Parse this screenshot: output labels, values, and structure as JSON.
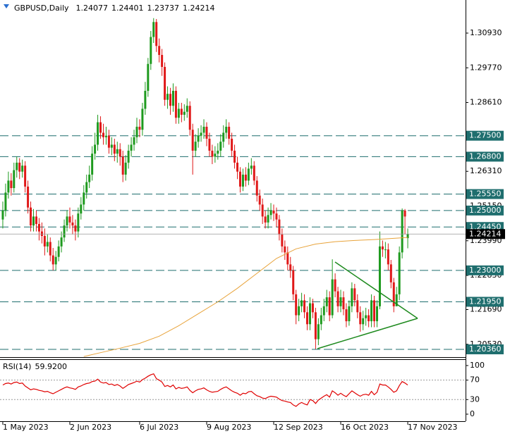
{
  "chart_data": {
    "type": "candlestick",
    "title": "GBPUSD,Daily",
    "up_color": "#1e9a1e",
    "down_color": "#e01818",
    "ohlc": [
      [
        1.247,
        1.253,
        1.244,
        1.25
      ],
      [
        1.25,
        1.259,
        1.248,
        1.256
      ],
      [
        1.256,
        1.263,
        1.254,
        1.26
      ],
      [
        1.26,
        1.2625,
        1.255,
        1.2575
      ],
      [
        1.2575,
        1.266,
        1.256,
        1.2635
      ],
      [
        1.2635,
        1.268,
        1.261,
        1.266
      ],
      [
        1.266,
        1.2675,
        1.2605,
        1.263
      ],
      [
        1.263,
        1.267,
        1.261,
        1.265
      ],
      [
        1.265,
        1.2665,
        1.256,
        1.258
      ],
      [
        1.258,
        1.26,
        1.249,
        1.251
      ],
      [
        1.251,
        1.253,
        1.243,
        1.245
      ],
      [
        1.245,
        1.2505,
        1.243,
        1.248
      ],
      [
        1.248,
        1.25,
        1.243,
        1.2455
      ],
      [
        1.2455,
        1.2475,
        1.24,
        1.243
      ],
      [
        1.243,
        1.246,
        1.239,
        1.2415
      ],
      [
        1.2415,
        1.244,
        1.235,
        1.238
      ],
      [
        1.238,
        1.242,
        1.236,
        1.2395
      ],
      [
        1.2395,
        1.241,
        1.233,
        1.235
      ],
      [
        1.235,
        1.2375,
        1.23,
        1.232
      ],
      [
        1.232,
        1.2365,
        1.23,
        1.2345
      ],
      [
        1.2345,
        1.24,
        1.233,
        1.238
      ],
      [
        1.238,
        1.243,
        1.236,
        1.241
      ],
      [
        1.241,
        1.247,
        1.2395,
        1.245
      ],
      [
        1.245,
        1.25,
        1.243,
        1.248
      ],
      [
        1.248,
        1.251,
        1.244,
        1.246
      ],
      [
        1.246,
        1.2485,
        1.242,
        1.245
      ],
      [
        1.245,
        1.247,
        1.24,
        1.243
      ],
      [
        1.243,
        1.251,
        1.241,
        1.249
      ],
      [
        1.249,
        1.2545,
        1.247,
        1.252
      ],
      [
        1.252,
        1.2585,
        1.25,
        1.256
      ],
      [
        1.256,
        1.262,
        1.254,
        1.2595
      ],
      [
        1.2595,
        1.265,
        1.2575,
        1.262
      ],
      [
        1.262,
        1.2715,
        1.26,
        1.269
      ],
      [
        1.269,
        1.276,
        1.267,
        1.272
      ],
      [
        1.272,
        1.282,
        1.27,
        1.2795
      ],
      [
        1.2795,
        1.2815,
        1.274,
        1.276
      ],
      [
        1.276,
        1.279,
        1.272,
        1.2745
      ],
      [
        1.2745,
        1.278,
        1.272,
        1.275
      ],
      [
        1.275,
        1.277,
        1.269,
        1.271
      ],
      [
        1.271,
        1.2745,
        1.2685,
        1.272
      ],
      [
        1.272,
        1.274,
        1.2665,
        1.269
      ],
      [
        1.269,
        1.273,
        1.266,
        1.2705
      ],
      [
        1.2705,
        1.2725,
        1.265,
        1.268
      ],
      [
        1.268,
        1.27,
        1.2595,
        1.262
      ],
      [
        1.262,
        1.2685,
        1.26,
        1.266
      ],
      [
        1.266,
        1.272,
        1.264,
        1.27
      ],
      [
        1.27,
        1.2745,
        1.268,
        1.272
      ],
      [
        1.272,
        1.277,
        1.27,
        1.2745
      ],
      [
        1.2745,
        1.281,
        1.2725,
        1.278
      ],
      [
        1.278,
        1.2805,
        1.2745,
        1.277
      ],
      [
        1.277,
        1.286,
        1.275,
        1.284
      ],
      [
        1.284,
        1.293,
        1.282,
        1.29
      ],
      [
        1.29,
        1.301,
        1.288,
        1.299
      ],
      [
        1.299,
        1.31,
        1.297,
        1.308
      ],
      [
        1.308,
        1.3143,
        1.306,
        1.313
      ],
      [
        1.313,
        1.314,
        1.303,
        1.305
      ],
      [
        1.305,
        1.3075,
        1.2995,
        1.302
      ],
      [
        1.302,
        1.304,
        1.295,
        1.298
      ],
      [
        1.298,
        1.2995,
        1.285,
        1.287
      ],
      [
        1.287,
        1.2915,
        1.284,
        1.289
      ],
      [
        1.289,
        1.291,
        1.282,
        1.285
      ],
      [
        1.285,
        1.2925,
        1.283,
        1.29
      ],
      [
        1.29,
        1.2915,
        1.279,
        1.281
      ],
      [
        1.281,
        1.286,
        1.279,
        1.284
      ],
      [
        1.284,
        1.286,
        1.2795,
        1.282
      ],
      [
        1.282,
        1.2855,
        1.28,
        1.283
      ],
      [
        1.283,
        1.2875,
        1.281,
        1.285
      ],
      [
        1.285,
        1.2865,
        1.275,
        1.277
      ],
      [
        1.277,
        1.279,
        1.262,
        1.27
      ],
      [
        1.27,
        1.2755,
        1.268,
        1.273
      ],
      [
        1.273,
        1.2775,
        1.271,
        1.275
      ],
      [
        1.275,
        1.2785,
        1.273,
        1.276
      ],
      [
        1.276,
        1.2805,
        1.274,
        1.278
      ],
      [
        1.278,
        1.2795,
        1.2715,
        1.274
      ],
      [
        1.274,
        1.276,
        1.268,
        1.27
      ],
      [
        1.27,
        1.272,
        1.2655,
        1.268
      ],
      [
        1.268,
        1.2715,
        1.266,
        1.269
      ],
      [
        1.269,
        1.2725,
        1.267,
        1.27
      ],
      [
        1.27,
        1.2755,
        1.268,
        1.273
      ],
      [
        1.273,
        1.2785,
        1.271,
        1.276
      ],
      [
        1.276,
        1.2805,
        1.274,
        1.278
      ],
      [
        1.278,
        1.2795,
        1.272,
        1.274
      ],
      [
        1.274,
        1.276,
        1.268,
        1.27
      ],
      [
        1.27,
        1.272,
        1.264,
        1.266
      ],
      [
        1.266,
        1.268,
        1.2605,
        1.263
      ],
      [
        1.263,
        1.2645,
        1.256,
        1.258
      ],
      [
        1.258,
        1.264,
        1.2565,
        1.262
      ],
      [
        1.262,
        1.2645,
        1.258,
        1.26
      ],
      [
        1.26,
        1.266,
        1.2585,
        1.264
      ],
      [
        1.264,
        1.2675,
        1.262,
        1.265
      ],
      [
        1.265,
        1.2665,
        1.2585,
        1.26
      ],
      [
        1.26,
        1.2615,
        1.253,
        1.255
      ],
      [
        1.255,
        1.257,
        1.25,
        1.252
      ],
      [
        1.252,
        1.254,
        1.2455,
        1.248
      ],
      [
        1.248,
        1.25,
        1.244,
        1.246
      ],
      [
        1.246,
        1.251,
        1.244,
        1.2485
      ],
      [
        1.2485,
        1.2525,
        1.247,
        1.25
      ],
      [
        1.25,
        1.252,
        1.2465,
        1.249
      ],
      [
        1.249,
        1.251,
        1.2445,
        1.247
      ],
      [
        1.247,
        1.2485,
        1.24,
        1.242
      ],
      [
        1.242,
        1.244,
        1.236,
        1.238
      ],
      [
        1.238,
        1.24,
        1.2335,
        1.236
      ],
      [
        1.236,
        1.238,
        1.23,
        1.232
      ],
      [
        1.232,
        1.2345,
        1.2275,
        1.23
      ],
      [
        1.23,
        1.2315,
        1.22,
        1.222
      ],
      [
        1.222,
        1.2235,
        1.212,
        1.215
      ],
      [
        1.215,
        1.2205,
        1.213,
        1.218
      ],
      [
        1.218,
        1.2225,
        1.216,
        1.22
      ],
      [
        1.22,
        1.222,
        1.214,
        1.216
      ],
      [
        1.216,
        1.218,
        1.21,
        1.212
      ],
      [
        1.212,
        1.221,
        1.21,
        1.219
      ],
      [
        1.219,
        1.2205,
        1.214,
        1.216
      ],
      [
        1.216,
        1.2175,
        1.2037,
        1.207
      ],
      [
        1.207,
        1.214,
        1.205,
        1.212
      ],
      [
        1.212,
        1.2175,
        1.21,
        1.215
      ],
      [
        1.215,
        1.2205,
        1.213,
        1.218
      ],
      [
        1.218,
        1.2235,
        1.216,
        1.221
      ],
      [
        1.221,
        1.223,
        1.213,
        1.215
      ],
      [
        1.215,
        1.2337,
        1.214,
        1.227
      ],
      [
        1.227,
        1.229,
        1.221,
        1.223
      ],
      [
        1.223,
        1.2245,
        1.216,
        1.218
      ],
      [
        1.218,
        1.2235,
        1.216,
        1.221
      ],
      [
        1.221,
        1.223,
        1.215,
        1.217
      ],
      [
        1.217,
        1.219,
        1.211,
        1.213
      ],
      [
        1.213,
        1.22,
        1.2115,
        1.218
      ],
      [
        1.218,
        1.226,
        1.216,
        1.224
      ],
      [
        1.224,
        1.2255,
        1.218,
        1.22
      ],
      [
        1.22,
        1.222,
        1.214,
        1.216
      ],
      [
        1.216,
        1.218,
        1.2095,
        1.212
      ],
      [
        1.212,
        1.2165,
        1.21,
        1.214
      ],
      [
        1.214,
        1.2175,
        1.2115,
        1.215
      ],
      [
        1.215,
        1.217,
        1.211,
        1.213
      ],
      [
        1.213,
        1.222,
        1.211,
        1.22
      ],
      [
        1.22,
        1.2215,
        1.211,
        1.213
      ],
      [
        1.213,
        1.22,
        1.211,
        1.218
      ],
      [
        1.218,
        1.243,
        1.217,
        1.238
      ],
      [
        1.238,
        1.24,
        1.2345,
        1.237
      ],
      [
        1.237,
        1.2395,
        1.234,
        1.237
      ],
      [
        1.237,
        1.239,
        1.23,
        1.232
      ],
      [
        1.232,
        1.2335,
        1.224,
        1.226
      ],
      [
        1.226,
        1.2275,
        1.216,
        1.218
      ],
      [
        1.218,
        1.2245,
        1.219,
        1.222
      ],
      [
        1.222,
        1.238,
        1.22,
        1.236
      ],
      [
        1.236,
        1.2507,
        1.234,
        1.25
      ],
      [
        1.25,
        1.2505,
        1.242,
        1.248
      ],
      [
        1.24077,
        1.24401,
        1.23737,
        1.24214
      ]
    ],
    "ma_color": "#e8a33a",
    "ma_x": [
      29,
      35,
      42,
      49,
      56,
      63,
      70,
      77,
      84,
      91,
      98,
      105,
      112,
      119,
      126,
      133,
      140,
      145
    ],
    "ma_values": [
      1.2012,
      1.2025,
      1.204,
      1.2056,
      1.208,
      1.2115,
      1.2155,
      1.2195,
      1.224,
      1.229,
      1.234,
      1.2372,
      1.2388,
      1.2396,
      1.24,
      1.2403,
      1.2407,
      1.241
    ],
    "xlim": [
      -1,
      165.7
    ],
    "xticks": [
      {
        "value": 0,
        "label": "1 May 2023"
      },
      {
        "value": 24,
        "label": "2 Jun 2023"
      },
      {
        "value": 49,
        "label": "6 Jul 2023"
      },
      {
        "value": 73,
        "label": "9 Aug 2023"
      },
      {
        "value": 97,
        "label": "12 Sep 2023"
      },
      {
        "value": 121,
        "label": "16 Oct 2023"
      },
      {
        "value": 145,
        "label": "17 Nov 2023"
      }
    ],
    "ylim": [
      1.20101,
      1.32036
    ],
    "yticks": [
      {
        "value": 1.3093,
        "label": "1.30930"
      },
      {
        "value": 1.2977,
        "label": "1.29770"
      },
      {
        "value": 1.2861,
        "label": "1.28610"
      },
      {
        "value": 1.2631,
        "label": "1.26310"
      },
      {
        "value": 1.2515,
        "label": "1.25150"
      },
      {
        "value": 1.2399,
        "label": "1.23990"
      },
      {
        "value": 1.2283,
        "label": "1.22830"
      },
      {
        "value": 1.2169,
        "label": "1.21690"
      },
      {
        "value": 1.2053,
        "label": "1.20530"
      }
    ],
    "level_color": "#1f6e6e",
    "levels": [
      {
        "value": 1.275,
        "label": "1.27500"
      },
      {
        "value": 1.268,
        "label": "1.26800"
      },
      {
        "value": 1.2555,
        "label": "1.25550"
      },
      {
        "value": 1.25,
        "label": "1.25000"
      },
      {
        "value": 1.2445,
        "label": "1.24450"
      },
      {
        "value": 1.23,
        "label": "1.23000"
      },
      {
        "value": 1.2195,
        "label": "1.21950"
      },
      {
        "value": 1.2036,
        "label": "1.20360"
      }
    ],
    "rsi": {
      "title": "RSI(14)",
      "color": "#e00000",
      "values": [
        60,
        63,
        64,
        62,
        65,
        66,
        63,
        64,
        58,
        54,
        50,
        52,
        51,
        49,
        48,
        46,
        47,
        44,
        42,
        45,
        48,
        51,
        54,
        56,
        54,
        53,
        51,
        56,
        58,
        61,
        63,
        64,
        67,
        68,
        72,
        66,
        64,
        65,
        61,
        62,
        59,
        61,
        58,
        53,
        57,
        61,
        63,
        65,
        68,
        66,
        71,
        74,
        78,
        81,
        83,
        73,
        70,
        66,
        57,
        59,
        56,
        60,
        52,
        55,
        53,
        54,
        56,
        49,
        44,
        48,
        51,
        52,
        54,
        50,
        47,
        45,
        46,
        47,
        51,
        54,
        56,
        52,
        48,
        45,
        43,
        39,
        43,
        42,
        46,
        47,
        42,
        38,
        36,
        33,
        32,
        35,
        37,
        36,
        35,
        31,
        28,
        27,
        25,
        24,
        19,
        16,
        21,
        24,
        21,
        19,
        30,
        28,
        22,
        29,
        33,
        37,
        40,
        35,
        48,
        44,
        39,
        43,
        39,
        36,
        42,
        48,
        44,
        40,
        37,
        40,
        41,
        39,
        47,
        40,
        45,
        62,
        60,
        60,
        56,
        51,
        45,
        48,
        59,
        67,
        64,
        59.92
      ],
      "value_labels": {
        "145": "59.9200"
      },
      "ylim": [
        -14.5,
        113
      ],
      "yticks": [
        100,
        70,
        30,
        0
      ]
    }
  }
}
